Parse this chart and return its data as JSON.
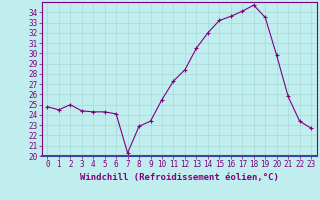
{
  "x": [
    0,
    1,
    2,
    3,
    4,
    5,
    6,
    7,
    8,
    9,
    10,
    11,
    12,
    13,
    14,
    15,
    16,
    17,
    18,
    19,
    20,
    21,
    22,
    23
  ],
  "y": [
    24.8,
    24.5,
    25.0,
    24.4,
    24.3,
    24.3,
    24.1,
    20.3,
    22.9,
    23.4,
    25.5,
    27.3,
    28.4,
    30.5,
    32.0,
    33.2,
    33.6,
    34.1,
    34.7,
    33.5,
    29.8,
    25.8,
    23.4,
    22.7
  ],
  "line_color": "#800080",
  "marker_color": "#800080",
  "bg_color": "#c0eeee",
  "grid_color": "#a8d8d8",
  "spine_color": "#800080",
  "xlabel": "Windchill (Refroidissement éolien,°C)",
  "ylim": [
    20,
    35
  ],
  "xlim": [
    -0.5,
    23.5
  ],
  "yticks": [
    20,
    21,
    22,
    23,
    24,
    25,
    26,
    27,
    28,
    29,
    30,
    31,
    32,
    33,
    34
  ],
  "xticks": [
    0,
    1,
    2,
    3,
    4,
    5,
    6,
    7,
    8,
    9,
    10,
    11,
    12,
    13,
    14,
    15,
    16,
    17,
    18,
    19,
    20,
    21,
    22,
    23
  ],
  "tick_color": "#800080",
  "xlabel_color": "#800080",
  "font_size": 5.5,
  "xlabel_fontsize": 6.5,
  "separator_color": "#4040a0",
  "line_width": 0.8,
  "marker_size": 3.0
}
